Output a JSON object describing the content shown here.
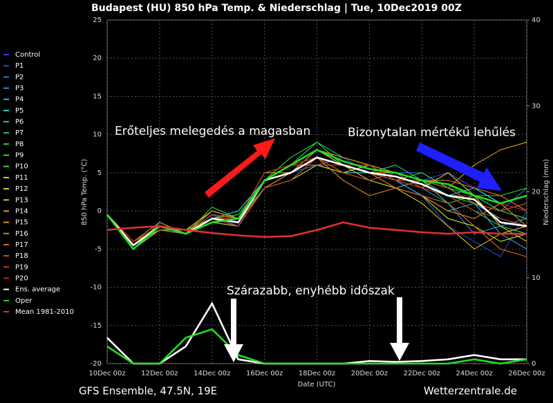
{
  "chart_data": {
    "type": "line",
    "title": "Budapest  (HU)  850 hPa Temp. & Niederschlag | Tue, 10Dec2019 00Z",
    "ylabel": "850 hPa Temp. (°C)",
    "y2label": "Niederschlag (mm)",
    "xlabel": "Date (UTC)",
    "source_left": "GFS Ensemble, 47.5N, 19E",
    "source_right": "Wetterzentrale.de",
    "annotations": [
      "Erőteljes melegedés a magasban",
      "Bizonytalan mértékű lehűlés",
      "Szárazabb, enyhébb időszak"
    ],
    "x": [
      0,
      1,
      2,
      3,
      4,
      5,
      6,
      7,
      8,
      9,
      10,
      11,
      12,
      13,
      14,
      15,
      16
    ],
    "xlim": [
      0,
      16
    ],
    "xticks": [
      {
        "value": 0,
        "label": "10Dec 00z"
      },
      {
        "value": 2,
        "label": "12Dec 00z"
      },
      {
        "value": 4,
        "label": "14Dec 00z"
      },
      {
        "value": 6,
        "label": "16Dec 00z"
      },
      {
        "value": 8,
        "label": "18Dec 00z"
      },
      {
        "value": 10,
        "label": "20Dec 00z"
      },
      {
        "value": 12,
        "label": "22Dec 00z"
      },
      {
        "value": 14,
        "label": "24Dec 00z"
      },
      {
        "value": 16,
        "label": "26Dec 00z"
      }
    ],
    "ylim": [
      -20,
      25
    ],
    "yticks": [
      -20,
      -15,
      -10,
      -5,
      0,
      5,
      10,
      15,
      20,
      25
    ],
    "y2lim": [
      0,
      40
    ],
    "y2ticks": [
      0,
      10,
      20,
      30,
      40
    ],
    "grid": true,
    "legend": "left",
    "series": [
      {
        "name": "Control",
        "color": "#3a3aff",
        "values": [
          -0.5,
          -4,
          -2.5,
          -3,
          -1,
          -1,
          3,
          5,
          7,
          6,
          6,
          5,
          4,
          5,
          3,
          1,
          0
        ]
      },
      {
        "name": "P1",
        "color": "#1e50d0",
        "values": [
          -0.5,
          -4.5,
          -2,
          -3,
          -0.5,
          -2,
          4,
          6,
          8,
          7,
          5,
          4,
          2,
          -2,
          -4,
          -6,
          0
        ]
      },
      {
        "name": "P2",
        "color": "#1e78d8",
        "values": [
          -0.5,
          -4,
          -2.5,
          -2.5,
          -1,
          -1,
          5,
          5,
          6,
          7,
          6,
          5,
          5,
          3,
          2,
          0,
          3
        ]
      },
      {
        "name": "P3",
        "color": "#2896d8",
        "values": [
          -0.5,
          -4.5,
          -2,
          -3,
          0,
          -1,
          4,
          5,
          8,
          6,
          4,
          5,
          3,
          1,
          -3,
          -2,
          -1
        ]
      },
      {
        "name": "P4",
        "color": "#30b4d8",
        "values": [
          -0.5,
          -5,
          -1.5,
          -3,
          -1,
          -2,
          3,
          4,
          7,
          5,
          6,
          4,
          2,
          0,
          1,
          -3,
          -5
        ]
      },
      {
        "name": "P5",
        "color": "#30d8d8",
        "values": [
          -0.5,
          -4,
          -2,
          -2.5,
          -1,
          0,
          4,
          6,
          6,
          5,
          5,
          3,
          4,
          2,
          3,
          1,
          2
        ]
      },
      {
        "name": "P6",
        "color": "#28c8a0",
        "values": [
          -0.5,
          -4.5,
          -2.5,
          -3,
          -0.5,
          -1,
          5,
          5,
          7,
          6,
          5,
          6,
          4,
          3,
          1,
          -1,
          -2
        ]
      },
      {
        "name": "P7",
        "color": "#28c878",
        "values": [
          -0.5,
          -4,
          -2,
          -3,
          -1,
          -1.5,
          4,
          6,
          9,
          7,
          6,
          4,
          3,
          2,
          0,
          -2,
          -3
        ]
      },
      {
        "name": "P8",
        "color": "#30d050",
        "values": [
          -0.5,
          -5,
          -2,
          -3,
          0.5,
          -1,
          3,
          5,
          8,
          6,
          5,
          5,
          4,
          1,
          2,
          0,
          1
        ]
      },
      {
        "name": "P9",
        "color": "#30d830",
        "values": [
          -0.5,
          -4.5,
          -2.5,
          -2.5,
          -1,
          -0.5,
          4,
          7,
          9,
          6,
          5,
          4,
          5,
          3,
          2,
          2,
          3
        ]
      },
      {
        "name": "P10",
        "color": "#40e020",
        "values": [
          -0.5,
          -4,
          -2,
          -3,
          -1,
          -1,
          5,
          6,
          8,
          7,
          6,
          5,
          3,
          2,
          1,
          0,
          -1
        ]
      },
      {
        "name": "P11",
        "color": "#c8e020",
        "values": [
          -0.5,
          -4.5,
          -2,
          -3,
          -1.5,
          -2,
          3,
          4,
          6,
          5,
          4,
          3,
          2,
          -1,
          -2,
          -4,
          -3
        ]
      },
      {
        "name": "P12",
        "color": "#e0d020",
        "values": [
          -0.5,
          -4,
          -2,
          -2.5,
          0,
          -1,
          4,
          5,
          7,
          5,
          6,
          4,
          3,
          5,
          2,
          -2,
          -4
        ]
      },
      {
        "name": "P13",
        "color": "#e0c020",
        "values": [
          -0.5,
          -5,
          -2.5,
          -3,
          -1,
          -1.5,
          4,
          6,
          8,
          6,
          4,
          3,
          1,
          -2,
          -5,
          -3,
          -2
        ]
      },
      {
        "name": "P14",
        "color": "#e0a020",
        "values": [
          -0.5,
          -4.5,
          -2,
          -3,
          -1,
          -1,
          5,
          5,
          7,
          6,
          5,
          5,
          4,
          3,
          6,
          8,
          9
        ]
      },
      {
        "name": "P15",
        "color": "#e09020",
        "values": [
          -0.5,
          -4,
          -1.5,
          -3,
          0,
          -1,
          4,
          6,
          7,
          4,
          2,
          3,
          2,
          0,
          -1,
          1,
          -2
        ]
      },
      {
        "name": "P16",
        "color": "#e08020",
        "values": [
          -0.5,
          -4.5,
          -2,
          -2.5,
          -1,
          -1.5,
          3,
          5,
          8,
          7,
          6,
          5,
          4,
          4,
          3,
          2,
          0
        ]
      },
      {
        "name": "P17",
        "color": "#e06820",
        "values": [
          -0.5,
          -4,
          -2.5,
          -3,
          -1,
          -1,
          4,
          5,
          7,
          6,
          5,
          3,
          2,
          1,
          -2,
          -5,
          -6
        ]
      },
      {
        "name": "P18",
        "color": "#d85020",
        "values": [
          -0.5,
          -5,
          -2,
          -3,
          -0.5,
          -1,
          4,
          6,
          6,
          6,
          5,
          4,
          4,
          3,
          1,
          0,
          1
        ]
      },
      {
        "name": "P19",
        "color": "#d03820",
        "values": [
          -0.5,
          -4.5,
          -2,
          -3,
          -1,
          -2,
          3,
          4,
          7,
          5,
          4,
          5,
          3,
          2,
          0,
          -1,
          -2
        ]
      },
      {
        "name": "P20",
        "color": "#c82020",
        "values": [
          -0.5,
          -4,
          -2,
          -3,
          -1,
          -1,
          5,
          6,
          7,
          6,
          6,
          4,
          3,
          2,
          2,
          1,
          0
        ]
      },
      {
        "name": "Ens. average",
        "color": "#ffffff",
        "values": [
          -0.5,
          -4.5,
          -2,
          -3,
          -1,
          -1.5,
          4,
          5,
          7,
          6,
          5,
          4.5,
          3.5,
          2,
          1.5,
          -1.5,
          -2
        ],
        "precip": [
          3,
          0,
          0,
          2,
          7,
          0.5,
          0,
          0,
          0,
          0,
          0.3,
          0.2,
          0.3,
          0.5,
          1,
          0.5,
          0.5
        ]
      },
      {
        "name": "Oper",
        "color": "#20e020",
        "values": [
          -0.5,
          -5,
          -2,
          -3,
          -1.5,
          -1,
          4,
          6,
          8,
          6.5,
          5.5,
          5,
          4,
          3.5,
          2,
          1,
          2
        ],
        "precip": [
          2,
          0,
          0,
          3,
          4,
          1,
          0,
          0,
          0,
          0,
          0,
          0,
          0,
          0,
          0.5,
          0,
          0.5
        ]
      },
      {
        "name": "Mean 1981-2010",
        "color": "#e03030",
        "values": [
          -2.5,
          -2.2,
          -2,
          -2.5,
          -2.9,
          -3.2,
          -3.4,
          -3.3,
          -2.5,
          -1.5,
          -2.2,
          -2.5,
          -2.8,
          -3,
          -2.8,
          -3,
          -3
        ]
      }
    ]
  }
}
